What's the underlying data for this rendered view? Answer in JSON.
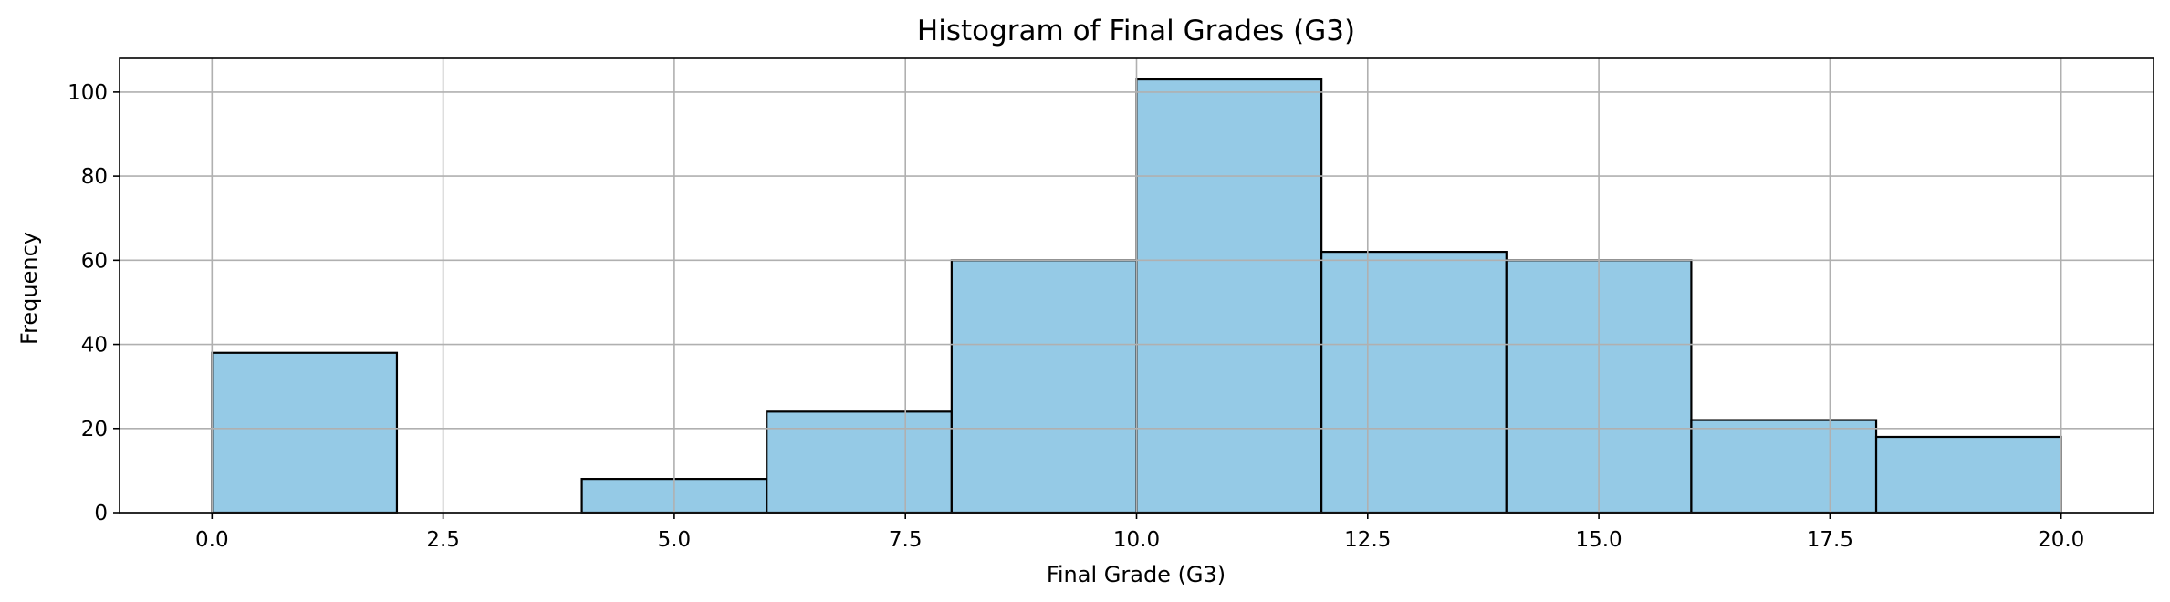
{
  "chart_data": {
    "type": "bar",
    "title": "Histogram of Final Grades (G3)",
    "xlabel": "Final Grade (G3)",
    "ylabel": "Frequency",
    "bin_edges": [
      0,
      2,
      4,
      6,
      8,
      10,
      12,
      14,
      16,
      18,
      20
    ],
    "values": [
      38,
      0,
      8,
      24,
      60,
      103,
      62,
      60,
      22,
      18
    ],
    "xlim": [
      -1,
      21
    ],
    "ylim": [
      0,
      108
    ],
    "xticks": [
      0.0,
      2.5,
      5.0,
      7.5,
      10.0,
      12.5,
      15.0,
      17.5,
      20.0
    ],
    "xtick_labels": [
      "0.0",
      "2.5",
      "5.0",
      "7.5",
      "10.0",
      "12.5",
      "15.0",
      "17.5",
      "20.0"
    ],
    "yticks": [
      0,
      20,
      40,
      60,
      80,
      100
    ],
    "ytick_labels": [
      "0",
      "20",
      "40",
      "60",
      "80",
      "100"
    ],
    "grid": true,
    "bar_color": "#95CAE6",
    "edge_color": "#000000",
    "grid_color": "#b0b0b0"
  }
}
